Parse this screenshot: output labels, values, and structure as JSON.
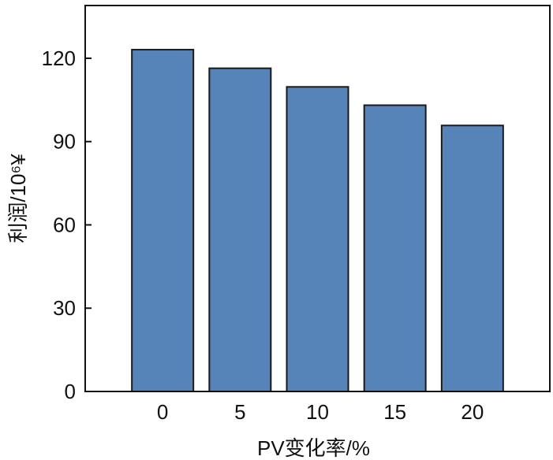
{
  "chart_data": {
    "type": "bar",
    "categories": [
      "0",
      "5",
      "10",
      "15",
      "20"
    ],
    "values": [
      123.1,
      116.4,
      109.7,
      103.1,
      95.8
    ],
    "xlabel": "PV变化率/%",
    "ylabel": "利润/10⁶¥",
    "ylim": [
      0,
      139
    ],
    "yticks": [
      0,
      30,
      60,
      90,
      120
    ],
    "grid": false,
    "bar_color": "#5684b8",
    "edge_color": "#1a1a1a"
  }
}
